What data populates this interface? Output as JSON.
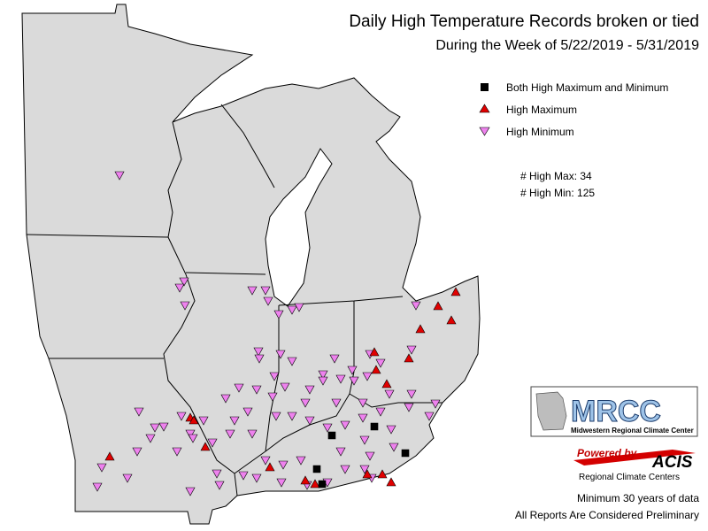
{
  "header": {
    "title": "Daily High Temperature Records broken or tied",
    "subtitle": "During the Week of 5/22/2019 - 5/31/2019"
  },
  "legend": {
    "items": [
      "Both High Maximum and Minimum",
      "High Maximum",
      "High Minimum"
    ],
    "counts": [
      "# High Max: 34",
      "# High Min: 125"
    ]
  },
  "logos": {
    "mrcc": "MRCC",
    "mrcc_name": "Midwestern Regional Climate Center",
    "powered_by": "Powered by",
    "acis": "ACIS",
    "acis_name": "Regional Climate Centers"
  },
  "notes": [
    "Minimum 30 years of data",
    "All Reports Are Considered Preliminary"
  ]
}
